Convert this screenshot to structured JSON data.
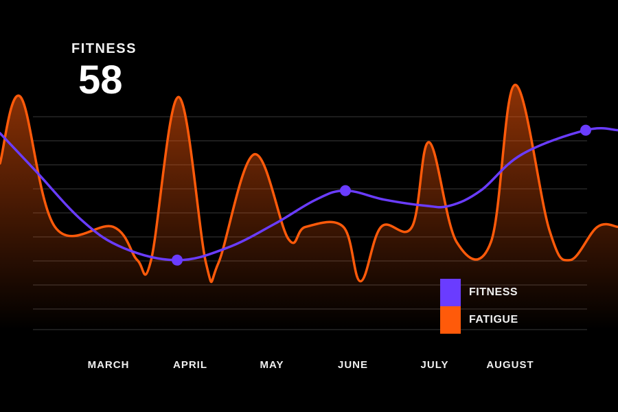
{
  "kpi": {
    "label": "FITNESS",
    "value": "58"
  },
  "colors": {
    "fitness": "#6a3cff",
    "fatigue": "#ff5a0a",
    "grid": "#3a3a3a",
    "background": "#000000"
  },
  "legend": [
    {
      "label": "FITNESS",
      "color": "#6a3cff"
    },
    {
      "label": "FATIGUE",
      "color": "#ff5a0a"
    }
  ],
  "chart_data": {
    "type": "line",
    "title": "",
    "xlabel": "",
    "ylabel": "",
    "x_tick_labels": [
      "MARCH",
      "APRIL",
      "MAY",
      "JUNE",
      "JULY",
      "AUGUST"
    ],
    "grid": true,
    "legend_position": "bottom-right",
    "ylim": [
      0,
      100
    ],
    "series": [
      {
        "name": "FITNESS",
        "color": "#6a3cff",
        "x": [
          0,
          50,
          120,
          180,
          258,
          330,
          400,
          460,
          503,
          560,
          620,
          655,
          700,
          760,
          853,
          900
        ],
        "values": [
          65,
          53,
          36,
          27,
          23,
          27,
          35,
          43,
          46,
          43,
          41,
          41,
          46,
          58,
          66,
          66
        ],
        "markers": [
          {
            "x": 258,
            "y": 23
          },
          {
            "x": 503,
            "y": 46
          },
          {
            "x": 853,
            "y": 66
          }
        ]
      },
      {
        "name": "FATIGUE",
        "color": "#ff5a0a",
        "x": [
          0,
          30,
          80,
          165,
          200,
          220,
          260,
          300,
          318,
          370,
          420,
          445,
          500,
          525,
          555,
          600,
          625,
          665,
          715,
          750,
          800,
          830,
          870,
          900
        ],
        "values": [
          55,
          77,
          34,
          34,
          23,
          23,
          77,
          22,
          22,
          58,
          30,
          34,
          34,
          16,
          34,
          34,
          62,
          29,
          29,
          81,
          33,
          23,
          34,
          34
        ]
      }
    ]
  }
}
